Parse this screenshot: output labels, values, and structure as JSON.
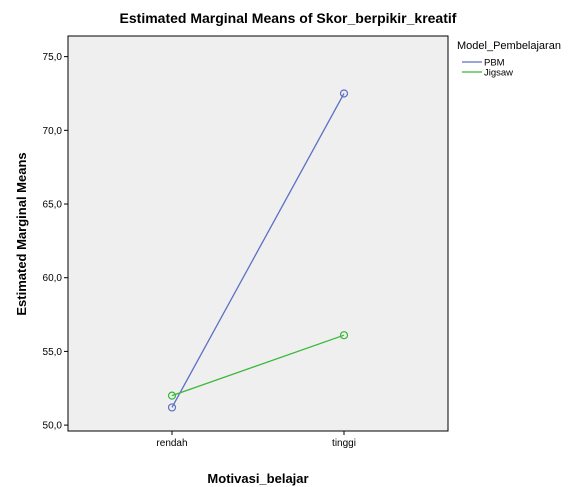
{
  "chart_data": {
    "type": "line",
    "title": "Estimated Marginal Means of Skor_berpikir_kreatif",
    "xlabel": "Motivasi_belajar",
    "ylabel": "Estimated Marginal Means",
    "categories": [
      "rendah",
      "tinggi"
    ],
    "ylim": [
      49.6,
      76.4
    ],
    "yticks": [
      50,
      55,
      60,
      65,
      70,
      75
    ],
    "ytick_labels": [
      "50,0",
      "55,0",
      "60,0",
      "65,0",
      "70,0",
      "75,0"
    ],
    "grid": false,
    "legend": {
      "title": "Model_Pembelajaran",
      "placement": "top-right-outside"
    },
    "series": [
      {
        "name": "PBM",
        "values": [
          51.2,
          72.5
        ],
        "color": "#5b6fc4",
        "marker": "open-circle"
      },
      {
        "name": "Jigsaw",
        "values": [
          52.0,
          56.1
        ],
        "color": "#38b838",
        "marker": "open-circle"
      }
    ],
    "plot_background": "#efefef"
  }
}
